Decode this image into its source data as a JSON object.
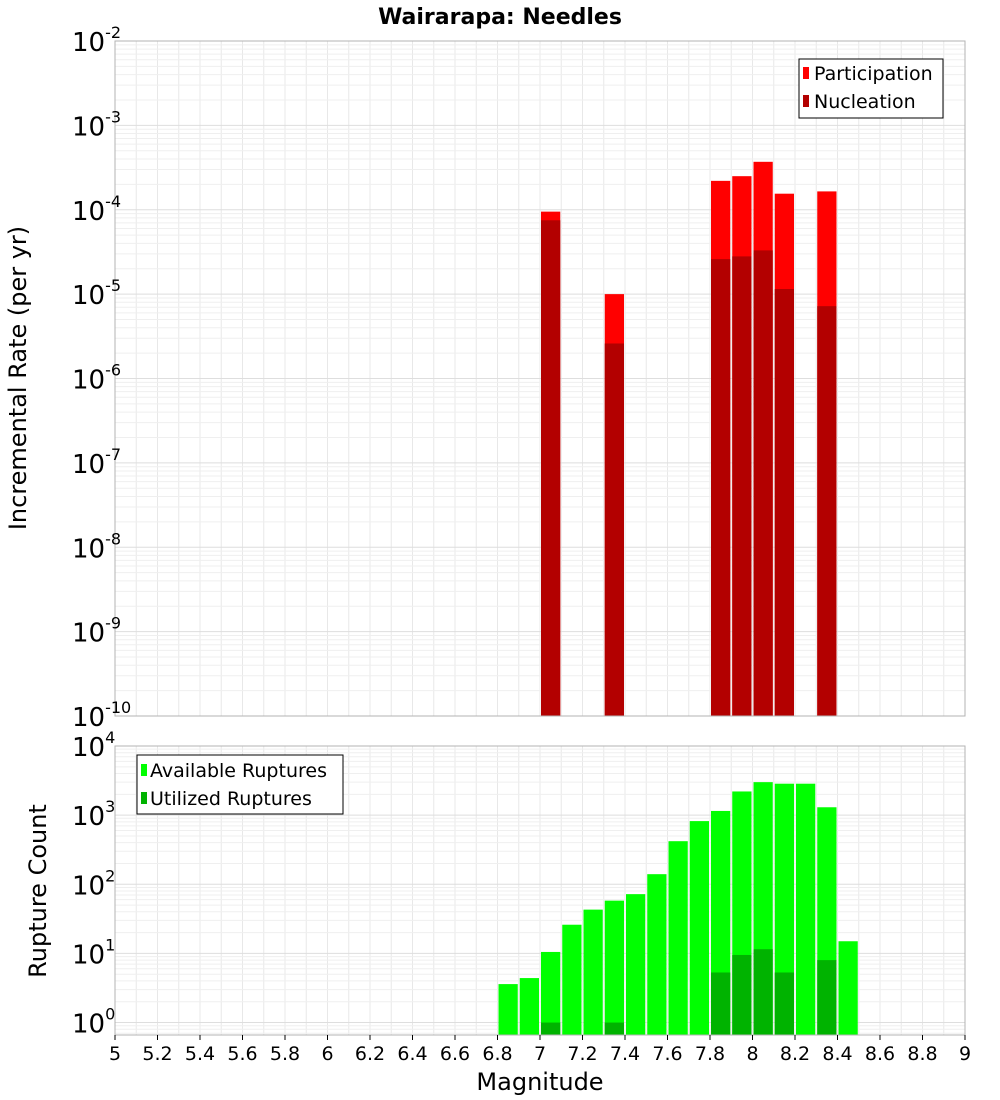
{
  "title": "Wairarapa: Needles",
  "chart_data": [
    {
      "type": "bar",
      "title": "Wairarapa: Needles",
      "xlabel": "",
      "ylabel": "Incremental Rate (per yr)",
      "yscale": "log",
      "ylim_exponents": [
        -10,
        -2
      ],
      "ytick_exponents": [
        -10,
        -9,
        -8,
        -7,
        -6,
        -5,
        -4,
        -3,
        -2
      ],
      "xlim": [
        5,
        9
      ],
      "bin_width": 0.1,
      "grid": true,
      "legend_position": "top-right",
      "legend": [
        {
          "label": "Participation",
          "color": "#ff0000"
        },
        {
          "label": "Nucleation",
          "color": "#b30000"
        }
      ],
      "x": [
        7.05,
        7.35,
        7.85,
        7.95,
        8.05,
        8.15,
        8.35
      ],
      "series": [
        {
          "name": "Participation",
          "color": "#ff0000",
          "values": [
            9.5e-05,
            1e-05,
            0.00022,
            0.00025,
            0.00037,
            0.000155,
            0.000165
          ]
        },
        {
          "name": "Nucleation",
          "color": "#b30000",
          "values": [
            7.5e-05,
            2.6e-06,
            2.6e-05,
            2.8e-05,
            3.3e-05,
            1.15e-05,
            7.2e-06
          ]
        }
      ]
    },
    {
      "type": "bar",
      "title": "",
      "xlabel": "Magnitude",
      "ylabel": "Rupture Count",
      "yscale": "log",
      "ylim_exponents": [
        -0.18,
        4
      ],
      "ytick_exponents": [
        0,
        1,
        2,
        3,
        4
      ],
      "xlim": [
        5,
        9
      ],
      "xticks": [
        "5",
        "5.2",
        "5.4",
        "5.6",
        "5.8",
        "6",
        "6.2",
        "6.4",
        "6.6",
        "6.8",
        "7",
        "7.2",
        "7.4",
        "7.6",
        "7.8",
        "8",
        "8.2",
        "8.4",
        "8.6",
        "8.8",
        "9"
      ],
      "bin_width": 0.1,
      "grid": true,
      "legend_position": "top-left",
      "legend": [
        {
          "label": "Available Ruptures",
          "color": "#00ff00"
        },
        {
          "label": "Utilized Ruptures",
          "color": "#00b300"
        }
      ],
      "x": [
        6.85,
        6.95,
        7.05,
        7.15,
        7.25,
        7.35,
        7.45,
        7.55,
        7.65,
        7.75,
        7.85,
        7.95,
        8.05,
        8.15,
        8.25,
        8.35,
        8.45
      ],
      "series": [
        {
          "name": "Available Ruptures",
          "color": "#00ff00",
          "values": [
            3.6,
            4.4,
            10.5,
            26,
            43,
            58,
            72,
            140,
            420,
            820,
            1150,
            2200,
            3000,
            2850,
            2850,
            1300,
            15
          ]
        },
        {
          "name": "Utilized Ruptures",
          "color": "#00b300",
          "values": [
            0,
            0,
            1,
            0,
            0,
            1,
            0,
            0,
            0,
            0,
            5.3,
            9.5,
            11.5,
            5.3,
            0,
            8,
            0
          ]
        }
      ]
    }
  ]
}
